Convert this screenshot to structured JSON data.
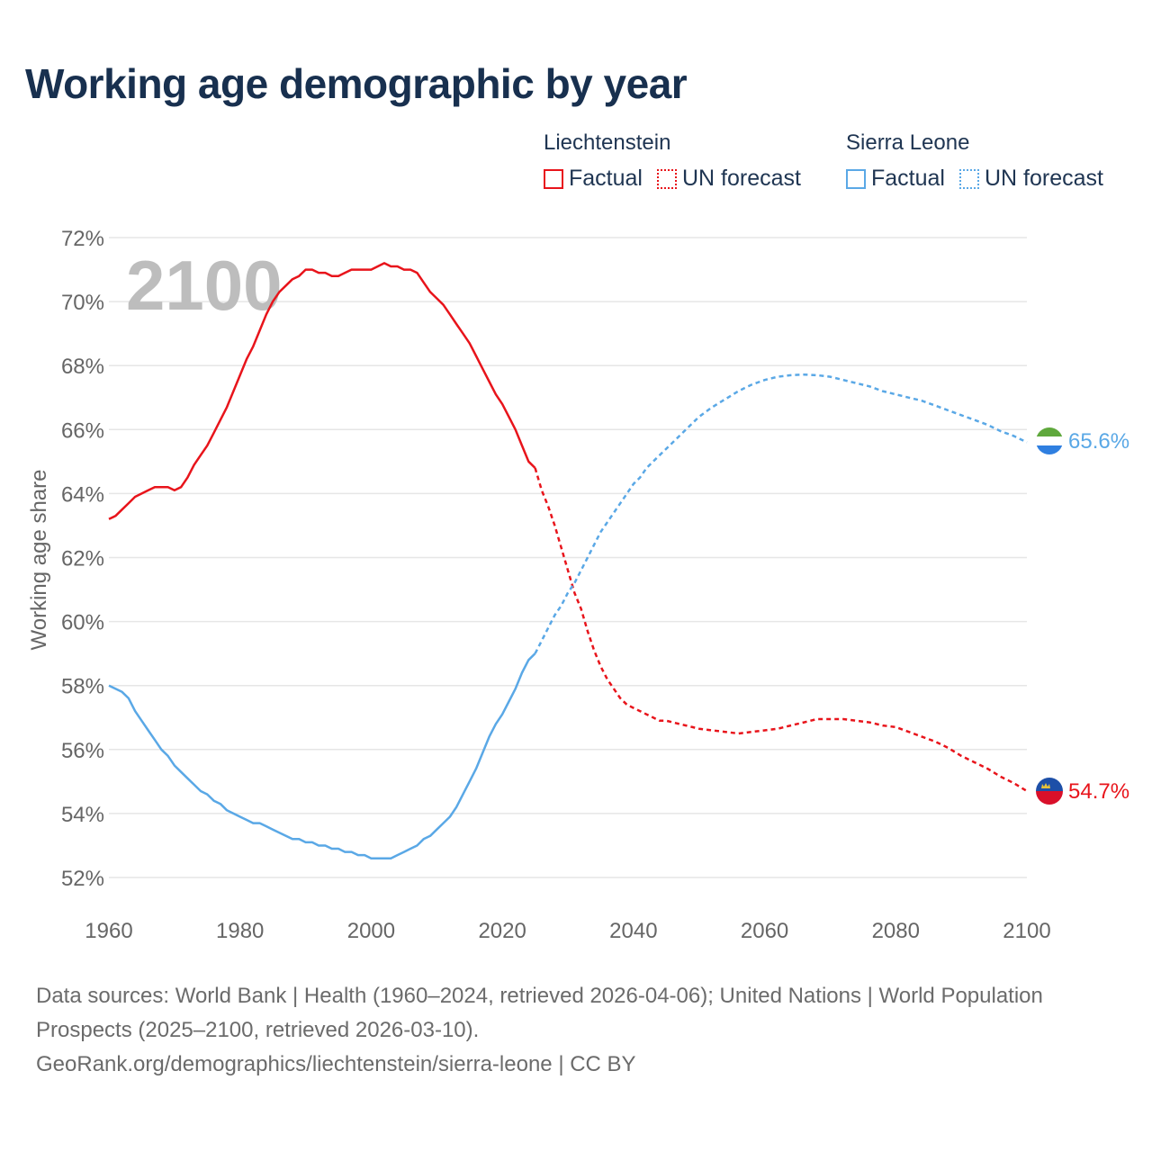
{
  "title": "Working age demographic by year",
  "colors": {
    "liechtenstein": "#e8141b",
    "sierra_leone": "#5aa8e6",
    "grid": "#e6e6e6",
    "axis_text": "#666666",
    "year_watermark": "#bdbdbd"
  },
  "legend": {
    "groups": [
      {
        "country": "Liechtenstein",
        "factual": "Factual",
        "forecast": "UN forecast"
      },
      {
        "country": "Sierra Leone",
        "factual": "Factual",
        "forecast": "UN forecast"
      }
    ]
  },
  "footer": {
    "sources": "Data sources: World Bank | Health (1960–2024, retrieved 2026-04-06); United Nations | World Population Prospects (2025–2100, retrieved 2026-03-10).",
    "attribution": "GeoRank.org/demographics/liechtenstein/sierra-leone | CC BY"
  },
  "chart_data": {
    "type": "line",
    "title": "Working age demographic by year",
    "watermark_year": "2100",
    "xlabel": "",
    "ylabel": "Working age share",
    "xlim": [
      1960,
      2100
    ],
    "ylim": [
      51.2,
      72
    ],
    "x_ticks": [
      1960,
      1980,
      2000,
      2020,
      2040,
      2060,
      2080,
      2100
    ],
    "y_ticks": [
      52,
      54,
      56,
      58,
      60,
      62,
      64,
      66,
      68,
      70,
      72
    ],
    "y_tick_labels": [
      "52%",
      "54%",
      "56%",
      "58%",
      "60%",
      "62%",
      "64%",
      "66%",
      "68%",
      "70%",
      "72%"
    ],
    "grid": true,
    "forecast_start_year": 2025,
    "series": [
      {
        "name": "Liechtenstein",
        "end_label": "54.7%",
        "factual": [
          [
            1960,
            63.2
          ],
          [
            1961,
            63.3
          ],
          [
            1962,
            63.5
          ],
          [
            1963,
            63.7
          ],
          [
            1964,
            63.9
          ],
          [
            1965,
            64.0
          ],
          [
            1966,
            64.1
          ],
          [
            1967,
            64.2
          ],
          [
            1968,
            64.2
          ],
          [
            1969,
            64.2
          ],
          [
            1970,
            64.1
          ],
          [
            1971,
            64.2
          ],
          [
            1972,
            64.5
          ],
          [
            1973,
            64.9
          ],
          [
            1974,
            65.2
          ],
          [
            1975,
            65.5
          ],
          [
            1976,
            65.9
          ],
          [
            1977,
            66.3
          ],
          [
            1978,
            66.7
          ],
          [
            1979,
            67.2
          ],
          [
            1980,
            67.7
          ],
          [
            1981,
            68.2
          ],
          [
            1982,
            68.6
          ],
          [
            1983,
            69.1
          ],
          [
            1984,
            69.6
          ],
          [
            1985,
            70.0
          ],
          [
            1986,
            70.3
          ],
          [
            1987,
            70.5
          ],
          [
            1988,
            70.7
          ],
          [
            1989,
            70.8
          ],
          [
            1990,
            71.0
          ],
          [
            1991,
            71.0
          ],
          [
            1992,
            70.9
          ],
          [
            1993,
            70.9
          ],
          [
            1994,
            70.8
          ],
          [
            1995,
            70.8
          ],
          [
            1996,
            70.9
          ],
          [
            1997,
            71.0
          ],
          [
            1998,
            71.0
          ],
          [
            1999,
            71.0
          ],
          [
            2000,
            71.0
          ],
          [
            2001,
            71.1
          ],
          [
            2002,
            71.2
          ],
          [
            2003,
            71.1
          ],
          [
            2004,
            71.1
          ],
          [
            2005,
            71.0
          ],
          [
            2006,
            71.0
          ],
          [
            2007,
            70.9
          ],
          [
            2008,
            70.6
          ],
          [
            2009,
            70.3
          ],
          [
            2010,
            70.1
          ],
          [
            2011,
            69.9
          ],
          [
            2012,
            69.6
          ],
          [
            2013,
            69.3
          ],
          [
            2014,
            69.0
          ],
          [
            2015,
            68.7
          ],
          [
            2016,
            68.3
          ],
          [
            2017,
            67.9
          ],
          [
            2018,
            67.5
          ],
          [
            2019,
            67.1
          ],
          [
            2020,
            66.8
          ],
          [
            2021,
            66.4
          ],
          [
            2022,
            66.0
          ],
          [
            2023,
            65.5
          ],
          [
            2024,
            65.0
          ],
          [
            2025,
            64.8
          ]
        ],
        "forecast": [
          [
            2025,
            64.8
          ],
          [
            2026,
            64.1
          ],
          [
            2027,
            63.6
          ],
          [
            2028,
            63.0
          ],
          [
            2029,
            62.3
          ],
          [
            2030,
            61.6
          ],
          [
            2031,
            60.9
          ],
          [
            2032,
            60.4
          ],
          [
            2033,
            59.7
          ],
          [
            2034,
            59.1
          ],
          [
            2035,
            58.6
          ],
          [
            2036,
            58.2
          ],
          [
            2037,
            57.9
          ],
          [
            2038,
            57.6
          ],
          [
            2039,
            57.4
          ],
          [
            2040,
            57.3
          ],
          [
            2041,
            57.2
          ],
          [
            2042,
            57.1
          ],
          [
            2043,
            57.0
          ],
          [
            2044,
            56.9
          ],
          [
            2045,
            56.9
          ],
          [
            2046,
            56.85
          ],
          [
            2047,
            56.8
          ],
          [
            2048,
            56.75
          ],
          [
            2049,
            56.7
          ],
          [
            2050,
            56.65
          ],
          [
            2052,
            56.6
          ],
          [
            2054,
            56.55
          ],
          [
            2056,
            56.5
          ],
          [
            2058,
            56.55
          ],
          [
            2060,
            56.6
          ],
          [
            2062,
            56.65
          ],
          [
            2064,
            56.75
          ],
          [
            2066,
            56.85
          ],
          [
            2068,
            56.95
          ],
          [
            2070,
            56.95
          ],
          [
            2072,
            56.95
          ],
          [
            2074,
            56.9
          ],
          [
            2076,
            56.85
          ],
          [
            2078,
            56.75
          ],
          [
            2080,
            56.7
          ],
          [
            2082,
            56.55
          ],
          [
            2084,
            56.4
          ],
          [
            2086,
            56.25
          ],
          [
            2088,
            56.05
          ],
          [
            2090,
            55.8
          ],
          [
            2092,
            55.6
          ],
          [
            2094,
            55.4
          ],
          [
            2096,
            55.15
          ],
          [
            2098,
            54.95
          ],
          [
            2100,
            54.7
          ]
        ]
      },
      {
        "name": "Sierra Leone",
        "end_label": "65.6%",
        "factual": [
          [
            1960,
            58.0
          ],
          [
            1961,
            57.9
          ],
          [
            1962,
            57.8
          ],
          [
            1963,
            57.6
          ],
          [
            1964,
            57.2
          ],
          [
            1965,
            56.9
          ],
          [
            1966,
            56.6
          ],
          [
            1967,
            56.3
          ],
          [
            1968,
            56.0
          ],
          [
            1969,
            55.8
          ],
          [
            1970,
            55.5
          ],
          [
            1971,
            55.3
          ],
          [
            1972,
            55.1
          ],
          [
            1973,
            54.9
          ],
          [
            1974,
            54.7
          ],
          [
            1975,
            54.6
          ],
          [
            1976,
            54.4
          ],
          [
            1977,
            54.3
          ],
          [
            1978,
            54.1
          ],
          [
            1979,
            54.0
          ],
          [
            1980,
            53.9
          ],
          [
            1981,
            53.8
          ],
          [
            1982,
            53.7
          ],
          [
            1983,
            53.7
          ],
          [
            1984,
            53.6
          ],
          [
            1985,
            53.5
          ],
          [
            1986,
            53.4
          ],
          [
            1987,
            53.3
          ],
          [
            1988,
            53.2
          ],
          [
            1989,
            53.2
          ],
          [
            1990,
            53.1
          ],
          [
            1991,
            53.1
          ],
          [
            1992,
            53.0
          ],
          [
            1993,
            53.0
          ],
          [
            1994,
            52.9
          ],
          [
            1995,
            52.9
          ],
          [
            1996,
            52.8
          ],
          [
            1997,
            52.8
          ],
          [
            1998,
            52.7
          ],
          [
            1999,
            52.7
          ],
          [
            2000,
            52.6
          ],
          [
            2001,
            52.6
          ],
          [
            2002,
            52.6
          ],
          [
            2003,
            52.6
          ],
          [
            2004,
            52.7
          ],
          [
            2005,
            52.8
          ],
          [
            2006,
            52.9
          ],
          [
            2007,
            53.0
          ],
          [
            2008,
            53.2
          ],
          [
            2009,
            53.3
          ],
          [
            2010,
            53.5
          ],
          [
            2011,
            53.7
          ],
          [
            2012,
            53.9
          ],
          [
            2013,
            54.2
          ],
          [
            2014,
            54.6
          ],
          [
            2015,
            55.0
          ],
          [
            2016,
            55.4
          ],
          [
            2017,
            55.9
          ],
          [
            2018,
            56.4
          ],
          [
            2019,
            56.8
          ],
          [
            2020,
            57.1
          ],
          [
            2021,
            57.5
          ],
          [
            2022,
            57.9
          ],
          [
            2023,
            58.4
          ],
          [
            2024,
            58.8
          ],
          [
            2025,
            59.0
          ]
        ],
        "forecast": [
          [
            2025,
            59.0
          ],
          [
            2026,
            59.4
          ],
          [
            2027,
            59.8
          ],
          [
            2028,
            60.2
          ],
          [
            2029,
            60.5
          ],
          [
            2030,
            60.9
          ],
          [
            2031,
            61.2
          ],
          [
            2032,
            61.6
          ],
          [
            2033,
            62.0
          ],
          [
            2034,
            62.4
          ],
          [
            2035,
            62.8
          ],
          [
            2036,
            63.1
          ],
          [
            2037,
            63.4
          ],
          [
            2038,
            63.7
          ],
          [
            2039,
            64.0
          ],
          [
            2040,
            64.3
          ],
          [
            2041,
            64.5
          ],
          [
            2042,
            64.8
          ],
          [
            2043,
            65.0
          ],
          [
            2044,
            65.2
          ],
          [
            2045,
            65.4
          ],
          [
            2046,
            65.6
          ],
          [
            2047,
            65.8
          ],
          [
            2048,
            66.0
          ],
          [
            2049,
            66.2
          ],
          [
            2050,
            66.4
          ],
          [
            2052,
            66.7
          ],
          [
            2054,
            66.95
          ],
          [
            2056,
            67.2
          ],
          [
            2058,
            67.4
          ],
          [
            2060,
            67.55
          ],
          [
            2062,
            67.65
          ],
          [
            2064,
            67.7
          ],
          [
            2066,
            67.72
          ],
          [
            2068,
            67.7
          ],
          [
            2070,
            67.65
          ],
          [
            2072,
            67.55
          ],
          [
            2074,
            67.45
          ],
          [
            2076,
            67.35
          ],
          [
            2078,
            67.2
          ],
          [
            2080,
            67.1
          ],
          [
            2082,
            67.0
          ],
          [
            2084,
            66.9
          ],
          [
            2086,
            66.75
          ],
          [
            2088,
            66.6
          ],
          [
            2090,
            66.45
          ],
          [
            2092,
            66.3
          ],
          [
            2094,
            66.15
          ],
          [
            2096,
            65.95
          ],
          [
            2098,
            65.8
          ],
          [
            2100,
            65.6
          ]
        ]
      }
    ]
  }
}
